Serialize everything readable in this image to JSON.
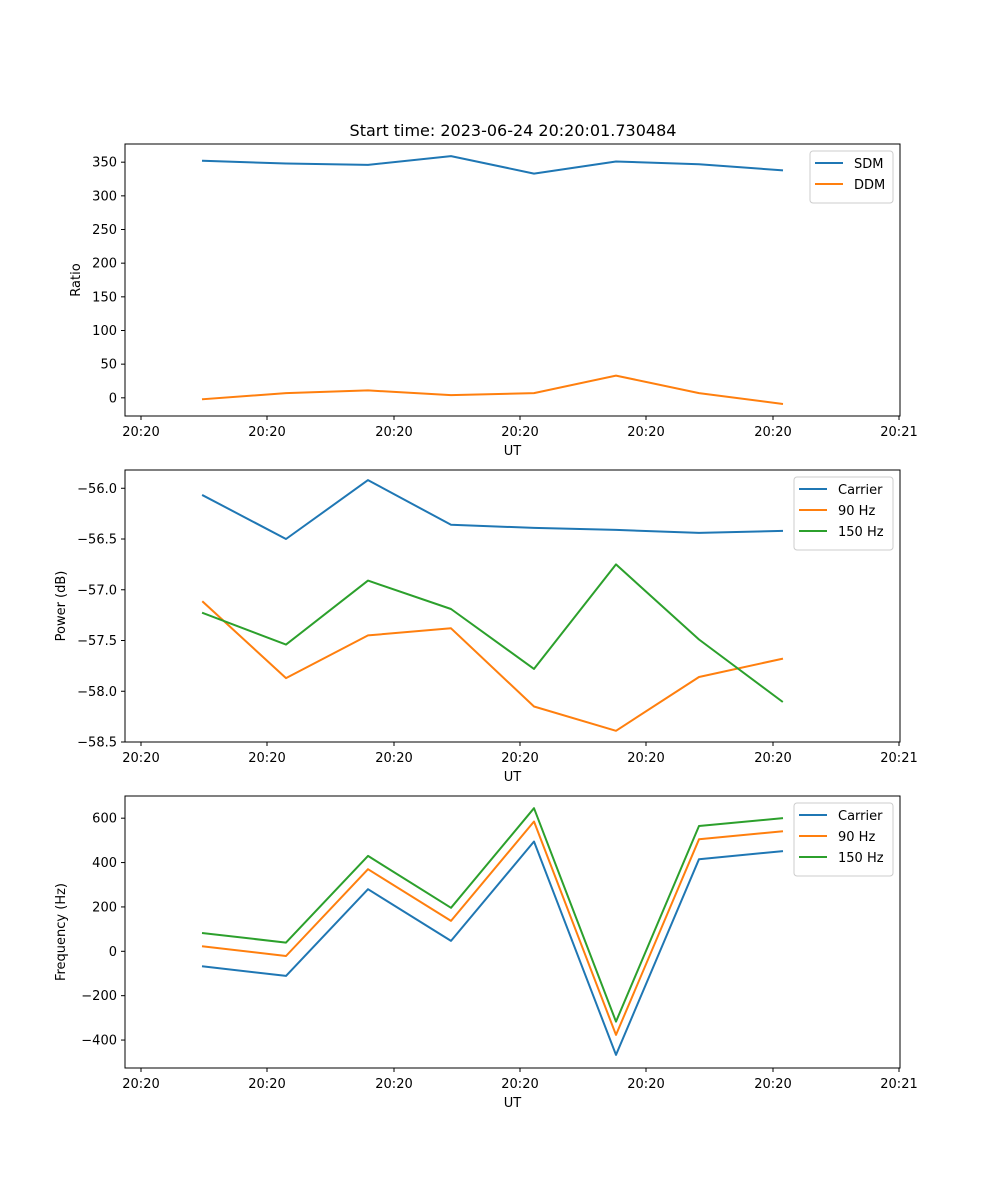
{
  "figure": {
    "title": "Start time: 2023-06-24 20:20:01.730484"
  },
  "colors": {
    "blue": "#1f77b4",
    "orange": "#ff7f0e",
    "green": "#2ca02c"
  },
  "chart_data": [
    {
      "type": "line",
      "title": "Start time: 2023-06-24 20:20:01.730484",
      "xlabel": "UT",
      "ylabel": "Ratio",
      "xticks": [
        "20:20",
        "20:20",
        "20:20",
        "20:20",
        "20:20",
        "20:20",
        "20:21"
      ],
      "yticks": [
        0,
        50,
        100,
        150,
        200,
        250,
        300,
        350
      ],
      "ylim": [
        -27,
        377
      ],
      "grid": false,
      "legend_position": "top-right",
      "series": [
        {
          "name": "SDM",
          "color": "blue",
          "values": [
            352,
            348,
            346,
            359,
            333,
            351,
            347,
            338
          ]
        },
        {
          "name": "DDM",
          "color": "orange",
          "values": [
            -2,
            7,
            11,
            4,
            7,
            33,
            7,
            -9
          ]
        }
      ]
    },
    {
      "type": "line",
      "title": "",
      "xlabel": "UT",
      "ylabel": "Power (dB)",
      "xticks": [
        "20:20",
        "20:20",
        "20:20",
        "20:20",
        "20:20",
        "20:20",
        "20:21"
      ],
      "yticks": [
        "−58.5",
        "−58.0",
        "−57.5",
        "−57.0",
        "−56.5",
        "−56.0"
      ],
      "ytick_values": [
        -58.5,
        -58.0,
        -57.5,
        -57.0,
        -56.5,
        -56.0
      ],
      "ylim": [
        -58.5,
        -55.82
      ],
      "grid": false,
      "legend_position": "top-right",
      "series": [
        {
          "name": "Carrier",
          "color": "blue",
          "values": [
            -56.07,
            -56.5,
            -55.92,
            -56.36,
            -56.39,
            -56.41,
            -56.44,
            -56.42
          ]
        },
        {
          "name": "90 Hz",
          "color": "orange",
          "values": [
            -57.12,
            -57.87,
            -57.45,
            -57.38,
            -58.15,
            -58.39,
            -57.86,
            -57.68
          ]
        },
        {
          "name": "150 Hz",
          "color": "green",
          "values": [
            -57.23,
            -57.54,
            -56.91,
            -57.19,
            -57.78,
            -56.75,
            -57.49,
            -58.1
          ]
        }
      ]
    },
    {
      "type": "line",
      "title": "",
      "xlabel": "UT",
      "ylabel": "Frequency (Hz)",
      "xticks": [
        "20:20",
        "20:20",
        "20:20",
        "20:20",
        "20:20",
        "20:20",
        "20:21"
      ],
      "yticks": [
        "−400",
        "−200",
        "0",
        "200",
        "400",
        "600"
      ],
      "ytick_values": [
        -400,
        -200,
        0,
        200,
        400,
        600
      ],
      "ylim": [
        -526,
        700
      ],
      "grid": false,
      "legend_position": "top-right",
      "series": [
        {
          "name": "Carrier",
          "color": "blue",
          "values": [
            -68,
            -111,
            280,
            47,
            495,
            -467,
            415,
            451
          ]
        },
        {
          "name": "90 Hz",
          "color": "orange",
          "values": [
            22,
            -21,
            370,
            137,
            585,
            -377,
            505,
            541
          ]
        },
        {
          "name": "150 Hz",
          "color": "green",
          "values": [
            82,
            39,
            430,
            196,
            645,
            -317,
            565,
            600
          ]
        }
      ]
    }
  ]
}
